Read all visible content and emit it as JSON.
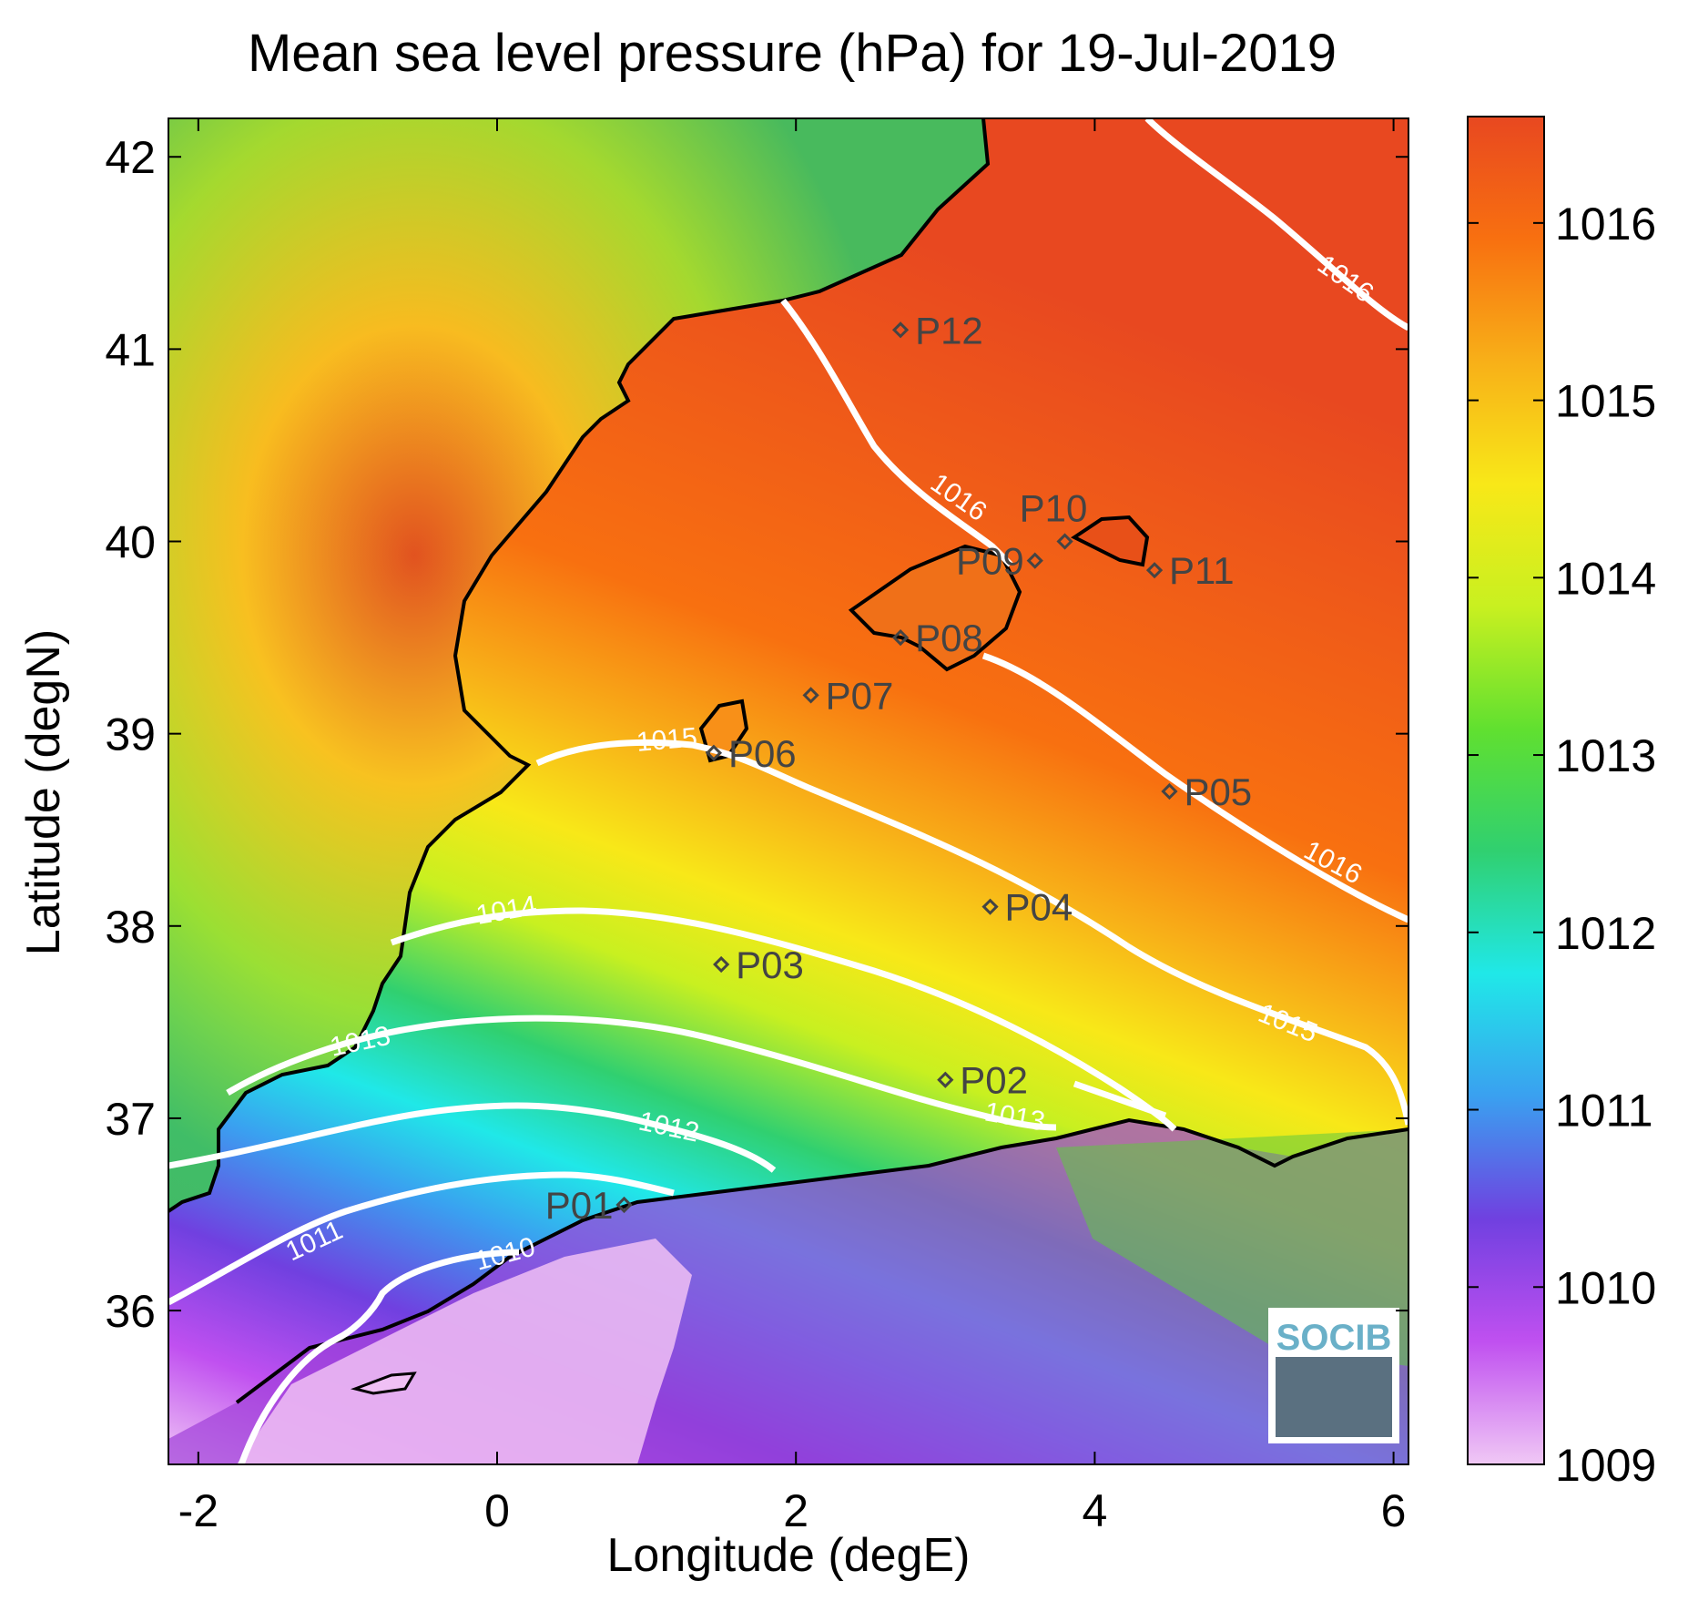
{
  "chart_data": {
    "type": "heatmap",
    "title": "Mean sea level pressure (hPa) for 19-Jul-2019",
    "xlabel": "Longitude (degE)",
    "ylabel": "Latitude (degN)",
    "xlim": [
      -2.2,
      6.1
    ],
    "ylim": [
      35.2,
      42.2
    ],
    "xticks": [
      -2,
      0,
      2,
      4,
      6
    ],
    "yticks": [
      36,
      37,
      38,
      39,
      40,
      41,
      42
    ],
    "colorbar": {
      "range": [
        1009,
        1016.6
      ],
      "ticks": [
        1009,
        1010,
        1011,
        1012,
        1013,
        1014,
        1015,
        1016
      ],
      "colors": [
        "#f0c8f5",
        "#c050f0",
        "#7040e0",
        "#3aa0f0",
        "#20e8e8",
        "#30d070",
        "#60e030",
        "#c8f020",
        "#f8e818",
        "#f8b018",
        "#f87010",
        "#e84820"
      ]
    },
    "contours": [
      {
        "level": 1010,
        "label": "1010"
      },
      {
        "level": 1011,
        "label": "1011"
      },
      {
        "level": 1012,
        "label": "1012"
      },
      {
        "level": 1013,
        "label": "1013"
      },
      {
        "level": 1014,
        "label": "1014"
      },
      {
        "level": 1015,
        "label": "1015"
      },
      {
        "level": 1016,
        "label": "1016"
      }
    ],
    "stations": [
      {
        "name": "P01",
        "lon": 0.85,
        "lat": 36.55
      },
      {
        "name": "P02",
        "lon": 3.0,
        "lat": 37.2
      },
      {
        "name": "P03",
        "lon": 1.5,
        "lat": 37.8
      },
      {
        "name": "P04",
        "lon": 3.3,
        "lat": 38.1
      },
      {
        "name": "P05",
        "lon": 4.5,
        "lat": 38.7
      },
      {
        "name": "P06",
        "lon": 1.45,
        "lat": 38.9
      },
      {
        "name": "P07",
        "lon": 2.1,
        "lat": 39.2
      },
      {
        "name": "P08",
        "lon": 2.7,
        "lat": 39.5
      },
      {
        "name": "P09",
        "lon": 3.6,
        "lat": 39.9
      },
      {
        "name": "P10",
        "lon": 3.8,
        "lat": 40.0
      },
      {
        "name": "P11",
        "lon": 4.4,
        "lat": 39.85
      },
      {
        "name": "P12",
        "lon": 2.7,
        "lat": 41.1
      }
    ]
  },
  "logo": {
    "text": "SOCIB"
  }
}
